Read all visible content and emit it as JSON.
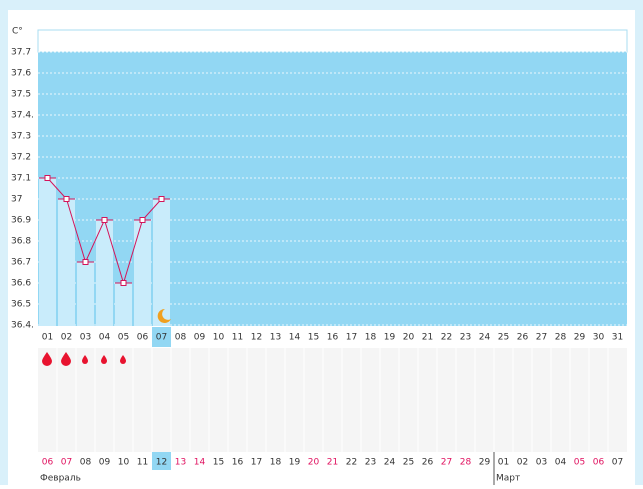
{
  "chart_data": {
    "type": "line",
    "y_label": "C°",
    "categories": [
      "01",
      "02",
      "03",
      "04",
      "05",
      "06",
      "07",
      "08",
      "09",
      "10",
      "11",
      "12",
      "13",
      "14",
      "15",
      "16",
      "17",
      "18",
      "19",
      "20",
      "21",
      "22",
      "23",
      "24",
      "25",
      "26",
      "27",
      "28",
      "29",
      "30",
      "31"
    ],
    "series": [
      {
        "color": "#d4145a",
        "bar_color": "#c9ecfb",
        "values": [
          37.1,
          37.0,
          36.7,
          36.9,
          36.6,
          36.9,
          37.0,
          null,
          null,
          null,
          null,
          null,
          null,
          null,
          null,
          null,
          null,
          null,
          null,
          null,
          null,
          null,
          null,
          null,
          null,
          null,
          null,
          null,
          null,
          null,
          null
        ]
      }
    ],
    "ylim": [
      36.4,
      37.7
    ],
    "yticks": [
      37.7,
      37.6,
      37.5,
      {
        "value": 37.4,
        "label": "37.4."
      },
      37.3,
      37.2,
      37.1,
      37.0,
      36.9,
      36.8,
      36.7,
      36.6,
      36.5,
      {
        "value": 36.4,
        "label": "36.4."
      }
    ],
    "grid": true,
    "fill_color": "#92d7f3",
    "dates": [
      {
        "label": "06",
        "color": "#e0115f"
      },
      {
        "label": "07",
        "color": "#e0115f"
      },
      {
        "label": "08",
        "color": "#333333"
      },
      {
        "label": "09",
        "color": "#333333"
      },
      {
        "label": "10",
        "color": "#333333"
      },
      {
        "label": "11",
        "color": "#333333"
      },
      {
        "label": "12",
        "color": "#333333"
      },
      {
        "label": "13",
        "color": "#e0115f"
      },
      {
        "label": "14",
        "color": "#e0115f"
      },
      {
        "label": "15",
        "color": "#333333"
      },
      {
        "label": "16",
        "color": "#333333"
      },
      {
        "label": "17",
        "color": "#333333"
      },
      {
        "label": "18",
        "color": "#333333"
      },
      {
        "label": "19",
        "color": "#333333"
      },
      {
        "label": "20",
        "color": "#e0115f"
      },
      {
        "label": "21",
        "color": "#e0115f"
      },
      {
        "label": "22",
        "color": "#333333"
      },
      {
        "label": "23",
        "color": "#333333"
      },
      {
        "label": "24",
        "color": "#333333"
      },
      {
        "label": "25",
        "color": "#333333"
      },
      {
        "label": "26",
        "color": "#333333"
      },
      {
        "label": "27",
        "color": "#e0115f"
      },
      {
        "label": "28",
        "color": "#e0115f"
      },
      {
        "label": "29",
        "color": "#333333"
      },
      {
        "label": "01",
        "color": "#333333"
      },
      {
        "label": "02",
        "color": "#333333"
      },
      {
        "label": "03",
        "color": "#333333"
      },
      {
        "label": "04",
        "color": "#333333"
      },
      {
        "label": "05",
        "color": "#e0115f"
      },
      {
        "label": "06",
        "color": "#e0115f"
      },
      {
        "label": "07",
        "color": "#333333"
      }
    ],
    "months": [
      "Февраль",
      "Март"
    ]
  }
}
